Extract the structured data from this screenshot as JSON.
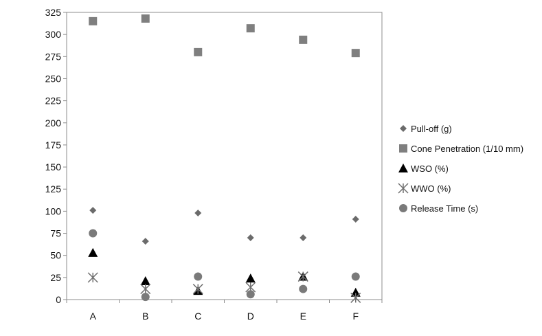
{
  "chart_data": {
    "type": "scatter",
    "categories": [
      "A",
      "B",
      "C",
      "D",
      "E",
      "F"
    ],
    "ylim": [
      0,
      325
    ],
    "yticks": [
      0,
      25,
      50,
      75,
      100,
      125,
      150,
      175,
      200,
      225,
      250,
      275,
      300,
      325
    ],
    "grid": false,
    "legend_position": "right",
    "series": [
      {
        "name": "Pull-off (g)",
        "marker": "diamond",
        "color": "#6b6b6b",
        "values": [
          101,
          66,
          98,
          70,
          70,
          91
        ]
      },
      {
        "name": "Cone Penetration (1/10 mm)",
        "marker": "square",
        "color": "#7f7f7f",
        "values": [
          315,
          318,
          280,
          307,
          294,
          279
        ]
      },
      {
        "name": "WSO (%)",
        "marker": "triangle",
        "color": "#000000",
        "values": [
          53,
          21,
          10,
          24,
          26,
          8
        ]
      },
      {
        "name": "WWO (%)",
        "marker": "asterisk",
        "color": "#707070",
        "values": [
          25,
          12,
          12,
          14,
          26,
          2
        ]
      },
      {
        "name": "Release Time (s)",
        "marker": "circle",
        "color": "#7a7a7a",
        "values": [
          75,
          3,
          26,
          6,
          12,
          26
        ]
      }
    ]
  }
}
